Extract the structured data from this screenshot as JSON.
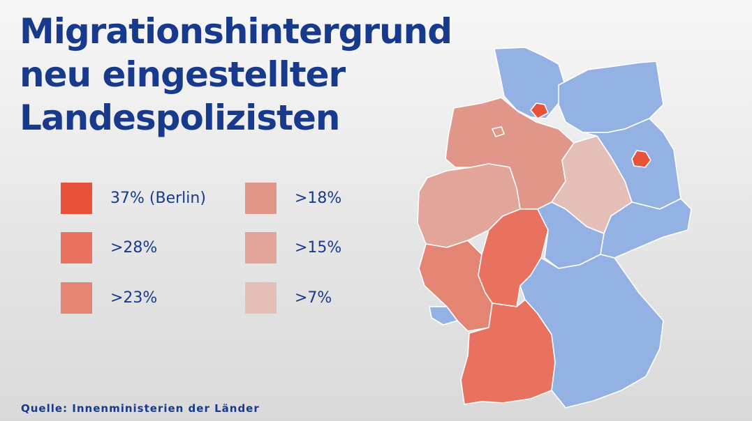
{
  "title": {
    "line1": "Migrationshintergrund",
    "line2": "neu eingestellter",
    "line3": "Landespolizisten"
  },
  "legend": [
    {
      "label": "37% (Berlin)",
      "color": "#e8513a"
    },
    {
      "label": ">28%",
      "color": "#e8725f"
    },
    {
      "label": ">23%",
      "color": "#e48574"
    },
    {
      "label": ">18%",
      "color": "#e1968a"
    },
    {
      "label": ">15%",
      "color": "#e2a599"
    },
    {
      "label": ">7%",
      "color": "#e4bfb8"
    }
  ],
  "colors": {
    "no_data_blue": "#93b1e3",
    "title_blue": "#173a8c"
  },
  "source": "Quelle: Innenministerien der Länder"
}
